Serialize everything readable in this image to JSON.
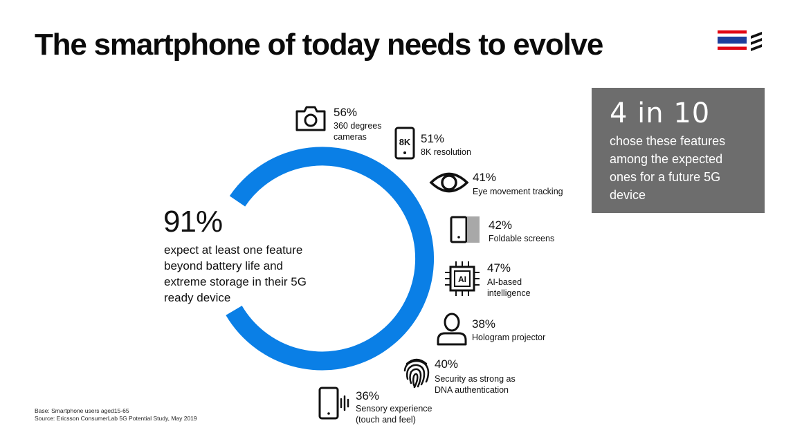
{
  "title": "The smartphone of today needs to evolve",
  "colors": {
    "accent": "#0a7fe6",
    "callout_bg": "#6d6d6d",
    "flag_red": "#e20613",
    "flag_blue": "#1d3e9c"
  },
  "headline": {
    "value": "91%",
    "description": "expect at least one feature beyond battery life and extreme storage in their 5G ready device"
  },
  "features": [
    {
      "icon": "camera-icon",
      "percent": "56%",
      "label": "360 degrees\ncameras"
    },
    {
      "icon": "8k-phone-icon",
      "icon_text": "8K",
      "percent": "51%",
      "label": "8K resolution"
    },
    {
      "icon": "eye-icon",
      "percent": "41%",
      "label": "Eye movement tracking"
    },
    {
      "icon": "foldable-phone-icon",
      "percent": "42%",
      "label": "Foldable screens"
    },
    {
      "icon": "ai-chip-icon",
      "icon_text": "AI",
      "percent": "47%",
      "label": "AI-based\nintelligence"
    },
    {
      "icon": "person-icon",
      "percent": "38%",
      "label": "Hologram projector"
    },
    {
      "icon": "fingerprint-icon",
      "percent": "40%",
      "label": "Security as strong as\nDNA authentication"
    },
    {
      "icon": "vibrating-phone-icon",
      "percent": "36%",
      "label": "Sensory experience\n(touch and feel)"
    }
  ],
  "callout": {
    "big": "4 in 10",
    "text": "chose these features\namong the expected\nones for a future 5G\ndevice"
  },
  "footnote": {
    "base": "Base: Smartphone users aged15-65",
    "source": "Source: Ericsson ConsumerLab 5G Potential Study, May 2019"
  }
}
